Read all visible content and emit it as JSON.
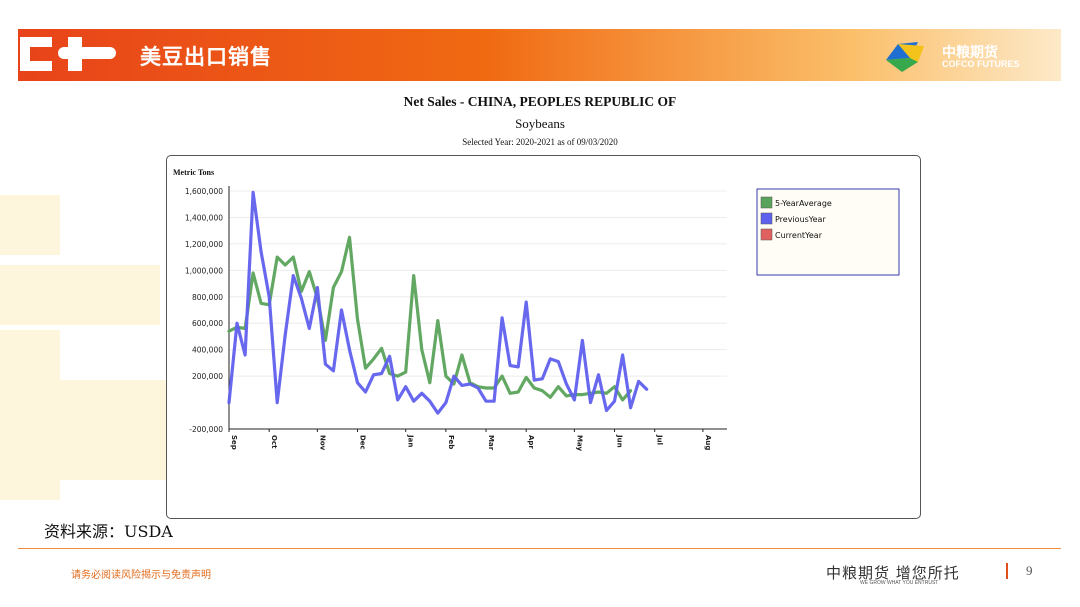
{
  "header": {
    "title": "美豆出口销售",
    "brand_cn": "中粮期货",
    "brand_en": "COFCO FUTURES"
  },
  "chart_data": {
    "type": "line",
    "title": "Net Sales - CHINA, PEOPLES REPUBLIC OF",
    "subtitle": "Soybeans",
    "selected_year_note": "Selected Year: 2020-2021 as of 09/03/2020",
    "ylabel": "Metric Tons",
    "ylim": [
      -200000,
      1600000
    ],
    "yticks": [
      "1,600,000",
      "1,400,000",
      "1,200,000",
      "1,000,000",
      "800,000",
      "600,000",
      "400,000",
      "200,000",
      "-200,000"
    ],
    "ytick_values": [
      1600000,
      1400000,
      1200000,
      1000000,
      800000,
      600000,
      400000,
      200000,
      -200000
    ],
    "month_labels": [
      {
        "label": "Sep",
        "week": 0
      },
      {
        "label": "Oct",
        "week": 5
      },
      {
        "label": "Nov",
        "week": 11
      },
      {
        "label": "Dec",
        "week": 16
      },
      {
        "label": "Jan",
        "week": 22
      },
      {
        "label": "Feb",
        "week": 27
      },
      {
        "label": "Mar",
        "week": 32
      },
      {
        "label": "Apr",
        "week": 37
      },
      {
        "label": "May",
        "week": 43
      },
      {
        "label": "Jun",
        "week": 48
      },
      {
        "label": "Jul",
        "week": 53
      },
      {
        "label": "Aug",
        "week": 59
      }
    ],
    "weeks": 63,
    "legend_position": "top-right",
    "series": [
      {
        "name": "5-YearAverage",
        "color": "#5aa35a",
        "values": [
          540000,
          570000,
          560000,
          980000,
          750000,
          740000,
          1100000,
          1040000,
          1100000,
          840000,
          990000,
          790000,
          470000,
          870000,
          990000,
          1250000,
          630000,
          260000,
          330000,
          410000,
          220000,
          200000,
          230000,
          960000,
          400000,
          150000,
          620000,
          200000,
          140000,
          360000,
          150000,
          120000,
          110000,
          110000,
          200000,
          70000,
          80000,
          190000,
          110000,
          90000,
          40000,
          120000,
          50000,
          60000,
          60000,
          70000,
          80000,
          70000,
          120000,
          20000,
          90000
        ]
      },
      {
        "name": "PreviousYear",
        "color": "#6060ee",
        "values": [
          0,
          600000,
          360000,
          1590000,
          1140000,
          800000,
          0,
          510000,
          960000,
          790000,
          560000,
          870000,
          290000,
          240000,
          700000,
          400000,
          150000,
          80000,
          210000,
          220000,
          350000,
          20000,
          120000,
          10000,
          70000,
          10000,
          -80000,
          0,
          200000,
          130000,
          140000,
          110000,
          10000,
          10000,
          640000,
          280000,
          270000,
          760000,
          170000,
          180000,
          330000,
          310000,
          140000,
          20000,
          470000,
          0,
          210000,
          -60000,
          10000,
          360000,
          -40000,
          160000,
          100000
        ]
      },
      {
        "name": "CurrentYear",
        "color": "#e06060",
        "values": []
      }
    ]
  },
  "source": "资料来源：USDA",
  "footer": {
    "disclaimer": "请务必阅读风险揭示与免责声明",
    "brand": "中粮期货 增您所托",
    "slogan": "WE GROW WHAT YOU ENTRUST",
    "page_number": "9"
  },
  "colors": {
    "header_orange": "#f06a12",
    "average_line": "#5aa35a",
    "previous_line": "#6060ee",
    "current_line": "#e06060"
  }
}
